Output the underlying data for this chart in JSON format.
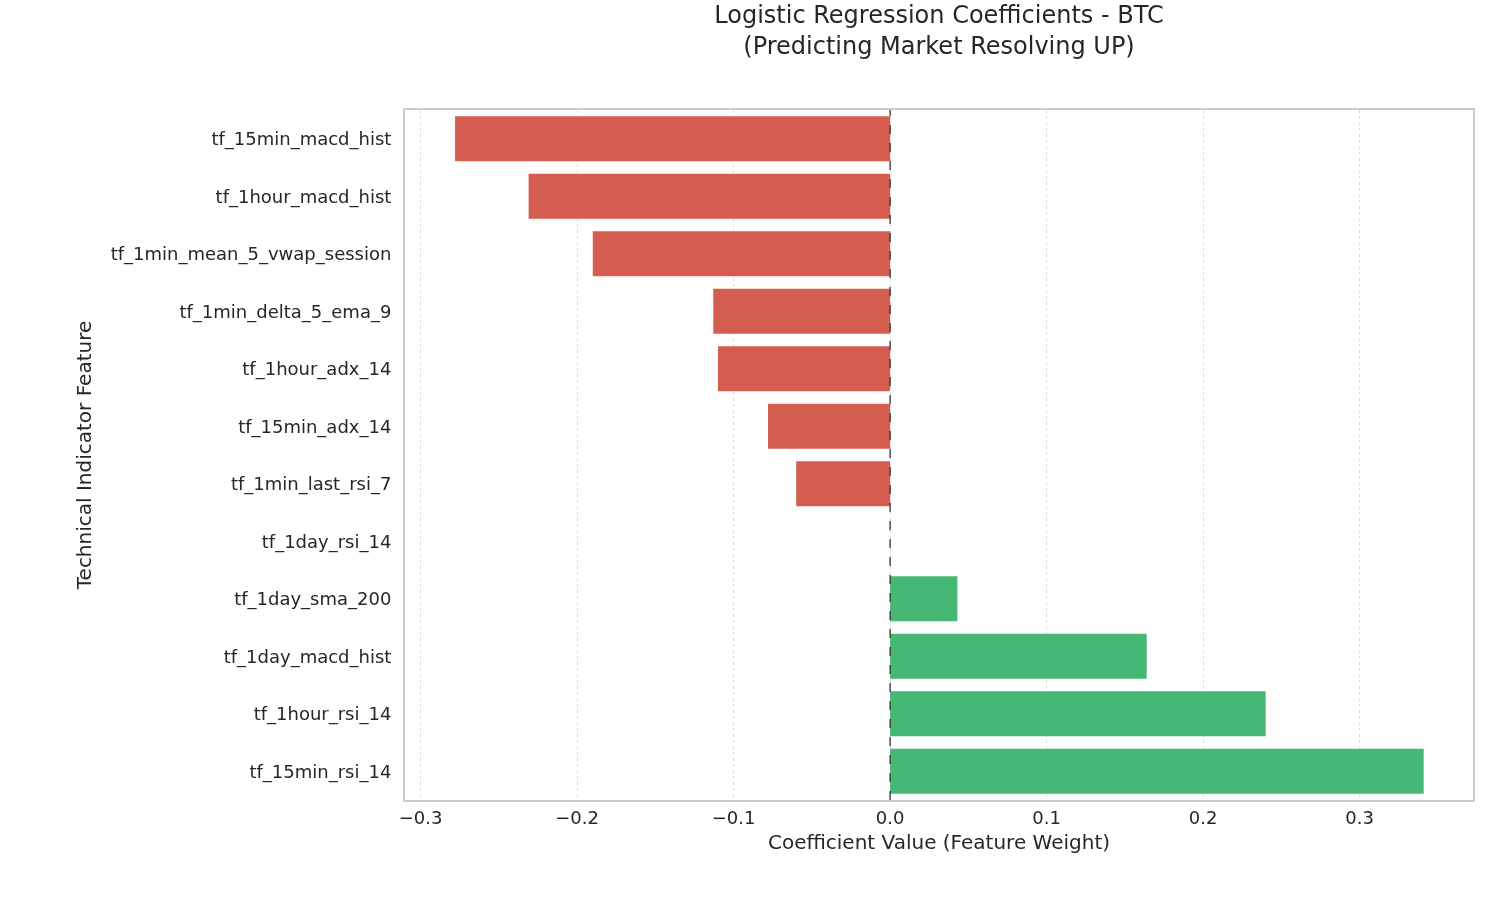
{
  "chart_data": {
    "type": "bar",
    "orientation": "horizontal",
    "title": "Logistic Regression Coefficients - BTC\n(Predicting Market Resolving UP)",
    "xlabel": "Coefficient Value (Feature Weight)",
    "ylabel": "Technical Indicator Feature",
    "categories": [
      "tf_15min_macd_hist",
      "tf_1hour_macd_hist",
      "tf_1min_mean_5_vwap_session",
      "tf_1min_delta_5_ema_9",
      "tf_1hour_adx_14",
      "tf_15min_adx_14",
      "tf_1min_last_rsi_7",
      "tf_1day_rsi_14",
      "tf_1day_sma_200",
      "tf_1day_macd_hist",
      "tf_1hour_rsi_14",
      "tf_15min_rsi_14"
    ],
    "values": [
      -0.278,
      -0.231,
      -0.19,
      -0.113,
      -0.11,
      -0.078,
      -0.06,
      0.0,
      0.043,
      0.164,
      0.24,
      0.341
    ],
    "colors": [
      "#d45d4f",
      "#d45d4f",
      "#d45d4f",
      "#d45d4f",
      "#d45d4f",
      "#d45d4f",
      "#d45d4f",
      "#44b874",
      "#44b874",
      "#44b874",
      "#44b874",
      "#44b874"
    ],
    "xlim": [
      -0.31,
      0.3725
    ],
    "xticks": [
      {
        "value": -0.3,
        "label": "−0.3"
      },
      {
        "value": -0.2,
        "label": "−0.2"
      },
      {
        "value": -0.1,
        "label": "−0.1"
      },
      "0.0",
      0.1,
      0.2,
      0.3
    ],
    "grid": "x",
    "ref_lines": [
      {
        "axis": "x",
        "value": 0,
        "label": null,
        "color": "#333333",
        "line_style": "dashed"
      }
    ]
  }
}
